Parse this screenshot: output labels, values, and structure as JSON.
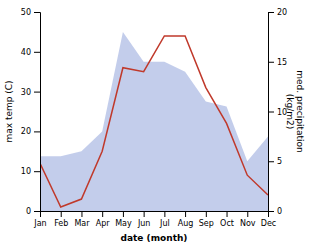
{
  "chart_data": {
    "type": "line",
    "categories": [
      "Jan",
      "Feb",
      "Mar",
      "Apr",
      "May",
      "Jun",
      "Jul",
      "Aug",
      "Sep",
      "Oct",
      "Nov",
      "Dec"
    ],
    "series": [
      {
        "type": "area",
        "axis": "y2",
        "color": "#b8c4e8",
        "values": [
          5.5,
          5.5,
          6,
          8,
          18,
          15,
          15,
          14,
          11,
          10.5,
          5,
          7.5
        ]
      },
      {
        "type": "line",
        "color": "#c0392b",
        "values": [
          12,
          1,
          3,
          15,
          36,
          35,
          44,
          44,
          31,
          22,
          9,
          4
        ]
      }
    ],
    "xlabel": "date (month)",
    "ylabel": "max temp (C)",
    "y2label": "med. precipitation\n(kg/m2)",
    "ylim": [
      0,
      50
    ],
    "yticks": [
      0,
      10,
      20,
      30,
      40,
      50
    ],
    "y2lim": [
      0,
      20
    ],
    "y2ticks": [
      0,
      5,
      10,
      15,
      20
    ]
  }
}
